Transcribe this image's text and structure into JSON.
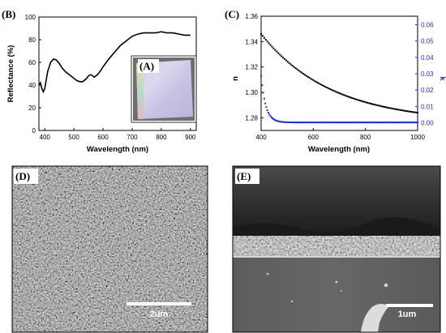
{
  "figure": {
    "panels": {
      "B": {
        "letter": "(B)"
      },
      "A": {
        "letter": "(A)"
      },
      "C": {
        "letter": "(C)"
      },
      "D": {
        "letter": "(D)",
        "scale_bar": "2um"
      },
      "E": {
        "letter": "(E)",
        "scale_bar": "1um"
      }
    }
  },
  "chart_data": [
    {
      "panel": "B",
      "type": "line",
      "xlabel": "Wavelength (nm)",
      "ylabel": "Reflectance (%)",
      "xlim": [
        380,
        920
      ],
      "ylim": [
        0,
        100
      ],
      "xticks": [
        400,
        500,
        600,
        700,
        800,
        900
      ],
      "yticks": [
        0,
        20,
        40,
        60,
        80,
        100
      ],
      "color": "#000000",
      "x": [
        380,
        385,
        390,
        395,
        400,
        410,
        420,
        430,
        440,
        450,
        460,
        470,
        480,
        490,
        500,
        510,
        520,
        530,
        540,
        550,
        555,
        560,
        565,
        570,
        580,
        590,
        600,
        620,
        640,
        660,
        680,
        700,
        720,
        740,
        760,
        780,
        800,
        820,
        840,
        860,
        880,
        900
      ],
      "y": [
        40,
        42,
        37,
        34,
        37,
        52,
        60,
        63,
        62,
        59,
        55,
        52,
        50,
        48,
        46,
        44,
        43,
        43,
        45,
        48,
        49,
        49,
        48,
        47,
        49,
        52,
        56,
        63,
        69,
        75,
        79,
        83,
        85,
        86,
        86,
        86,
        87,
        86,
        86,
        85,
        84,
        84
      ]
    },
    {
      "panel": "C",
      "type": "scatter",
      "xlabel": "Wavelength (nm)",
      "ylabel": "n",
      "y2label": "k",
      "xlim": [
        400,
        1000
      ],
      "ylim": [
        1.27,
        1.36
      ],
      "y2lim": [
        -0.0047,
        0.0652
      ],
      "xticks": [
        400,
        600,
        800,
        1000
      ],
      "yticks": [
        1.28,
        1.3,
        1.32,
        1.34,
        1.36
      ],
      "y2ticks": [
        0.0,
        0.01,
        0.02,
        0.03,
        0.04,
        0.05,
        0.06
      ],
      "series": [
        {
          "axis": "left",
          "color": "#000000",
          "x": [
            400,
            1000
          ],
          "y": [
            1.346,
            1.284
          ],
          "model": "exp-decay",
          "tau": 270
        },
        {
          "axis": "right",
          "color": "#1f2fcf",
          "x": [
            400,
            1000
          ],
          "y": [
            0.0286,
            0.0002
          ],
          "model": "fast-decay",
          "tau": 18
        }
      ]
    }
  ]
}
